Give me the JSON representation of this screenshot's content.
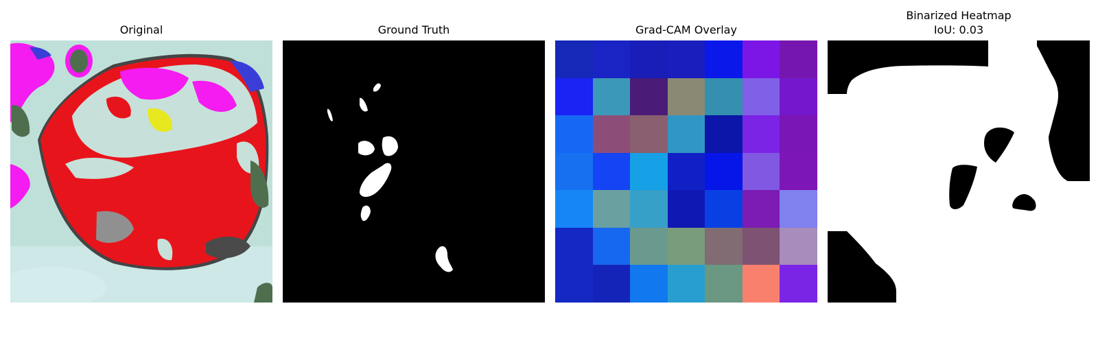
{
  "panels": [
    {
      "title": "Original"
    },
    {
      "title": "Ground Truth"
    },
    {
      "title": "Grad-CAM Overlay"
    },
    {
      "title_line1": "Binarized Heatmap",
      "title_line2": "IoU: 0.03"
    }
  ],
  "metrics": {
    "iou": 0.03
  },
  "colors": {
    "gt_background": "#000000",
    "gt_mask": "#ffffff",
    "bin_foreground": "#ffffff",
    "bin_background": "#000000",
    "leaf_red": "#e8141c",
    "leaf_magenta": "#f41cf0",
    "leaf_background": "#bfe0d8"
  },
  "gradcam_cells": [
    [
      "#1628b8",
      "#1a24c4",
      "#1a1eb8",
      "#1a1ebc",
      "#0a18ea",
      "#7c16e6",
      "#7616b0"
    ],
    [
      "#1a22f4",
      "#3c98b8",
      "#4a1c78",
      "#8a8a74",
      "#3490ae",
      "#8060e6",
      "#7418ce"
    ],
    [
      "#1668f4",
      "#8c4e78",
      "#8a6070",
      "#3096c4",
      "#0c16a8",
      "#7c24e6",
      "#7a16b6"
    ],
    [
      "#1670f0",
      "#1444f4",
      "#16a0e6",
      "#1020c4",
      "#0616e8",
      "#8058e2",
      "#7c16b6"
    ],
    [
      "#1686f6",
      "#6aa0a0",
      "#36a0c8",
      "#1018b4",
      "#0840e4",
      "#7c1cb4",
      "#8080ee"
    ],
    [
      "#1428c4",
      "#1668f0",
      "#6a9a8e",
      "#789c7c",
      "#806c72",
      "#7e5272",
      "#a88cbc"
    ],
    [
      "#1428c4",
      "#1424b8",
      "#1278f0",
      "#289ed0",
      "#6a9882",
      "#fa806e",
      "#7a24e6"
    ]
  ]
}
